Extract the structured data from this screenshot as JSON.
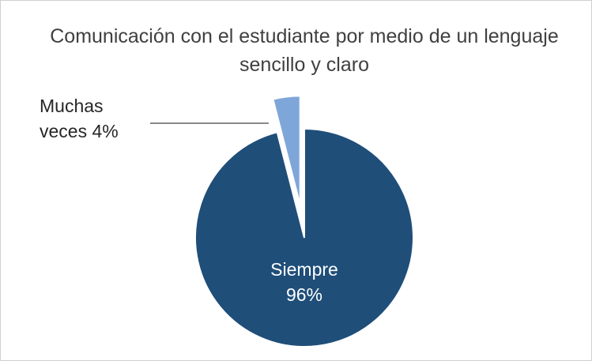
{
  "chart_data": {
    "type": "pie",
    "title": "Comunicación con el estudiante por medio de un lenguaje sencillo y claro",
    "categories": [
      "Siempre",
      "Muchas veces"
    ],
    "values": [
      96,
      4
    ],
    "value_labels": [
      "Siempre 96%",
      "Muchas veces 4%"
    ],
    "colors": [
      "#1f4e79",
      "#7fa6d9"
    ]
  }
}
